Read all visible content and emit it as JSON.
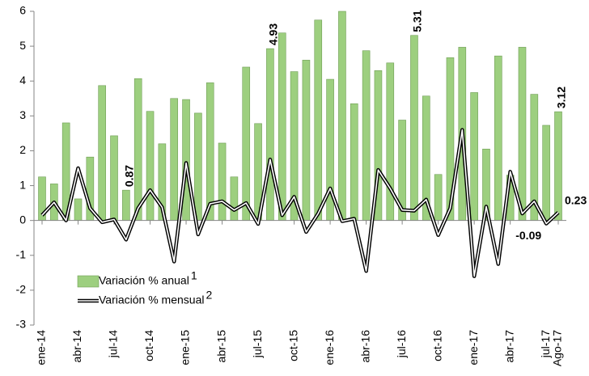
{
  "chart_data": {
    "type": "bar-line",
    "categories": [
      "ene-14",
      null,
      null,
      "abr-14",
      null,
      null,
      "jul-14",
      null,
      null,
      "oct-14",
      null,
      null,
      "ene-15",
      null,
      null,
      "abr-15",
      null,
      null,
      "jul-15",
      null,
      null,
      "oct-15",
      null,
      null,
      "ene-16",
      null,
      null,
      "abr-16",
      null,
      null,
      "jul-16",
      null,
      null,
      "oct-16",
      null,
      null,
      "ene-17",
      null,
      null,
      "abr-17",
      null,
      null,
      "jul-17",
      "Ago-17"
    ],
    "series": [
      {
        "name": "Variación % anual",
        "footnote": "1",
        "type": "bar",
        "color": "#9dcf7f",
        "label_color": "#a9d08e",
        "values": [
          1.25,
          1.05,
          2.8,
          0.62,
          1.82,
          3.87,
          2.43,
          0.87,
          4.07,
          3.13,
          2.2,
          3.5,
          3.47,
          3.08,
          3.95,
          2.22,
          1.25,
          4.4,
          2.78,
          4.93,
          5.38,
          4.27,
          4.6,
          5.75,
          4.05,
          6.0,
          3.35,
          4.87,
          4.3,
          4.52,
          2.88,
          5.31,
          3.57,
          1.32,
          4.67,
          4.97,
          3.67,
          2.05,
          4.72,
          1.3,
          4.97,
          3.62,
          2.73,
          3.12
        ],
        "labeled_points": [
          7,
          19,
          31,
          43
        ]
      },
      {
        "name": "Variación % mensual",
        "footnote": "2",
        "type": "line",
        "color": "#000000",
        "label_color": "#404040",
        "values": [
          0.15,
          0.52,
          0.0,
          1.5,
          0.35,
          -0.05,
          0.03,
          -0.55,
          0.35,
          0.87,
          0.38,
          -1.18,
          1.65,
          -0.4,
          0.48,
          0.55,
          0.3,
          0.5,
          -0.1,
          1.75,
          0.15,
          0.68,
          -0.33,
          0.2,
          0.92,
          -0.02,
          0.05,
          -1.45,
          1.45,
          0.92,
          0.3,
          0.28,
          0.6,
          -0.42,
          0.35,
          2.6,
          -1.6,
          0.4,
          -1.25,
          1.4,
          0.2,
          0.55,
          -0.09,
          0.23
        ],
        "labeled_points": [
          42,
          43
        ]
      }
    ],
    "ylim": [
      -3,
      6
    ],
    "yticks": [
      -3,
      -2,
      -1,
      0,
      1,
      2,
      3,
      4,
      5,
      6
    ],
    "grid": false,
    "legend": "lower-left"
  }
}
